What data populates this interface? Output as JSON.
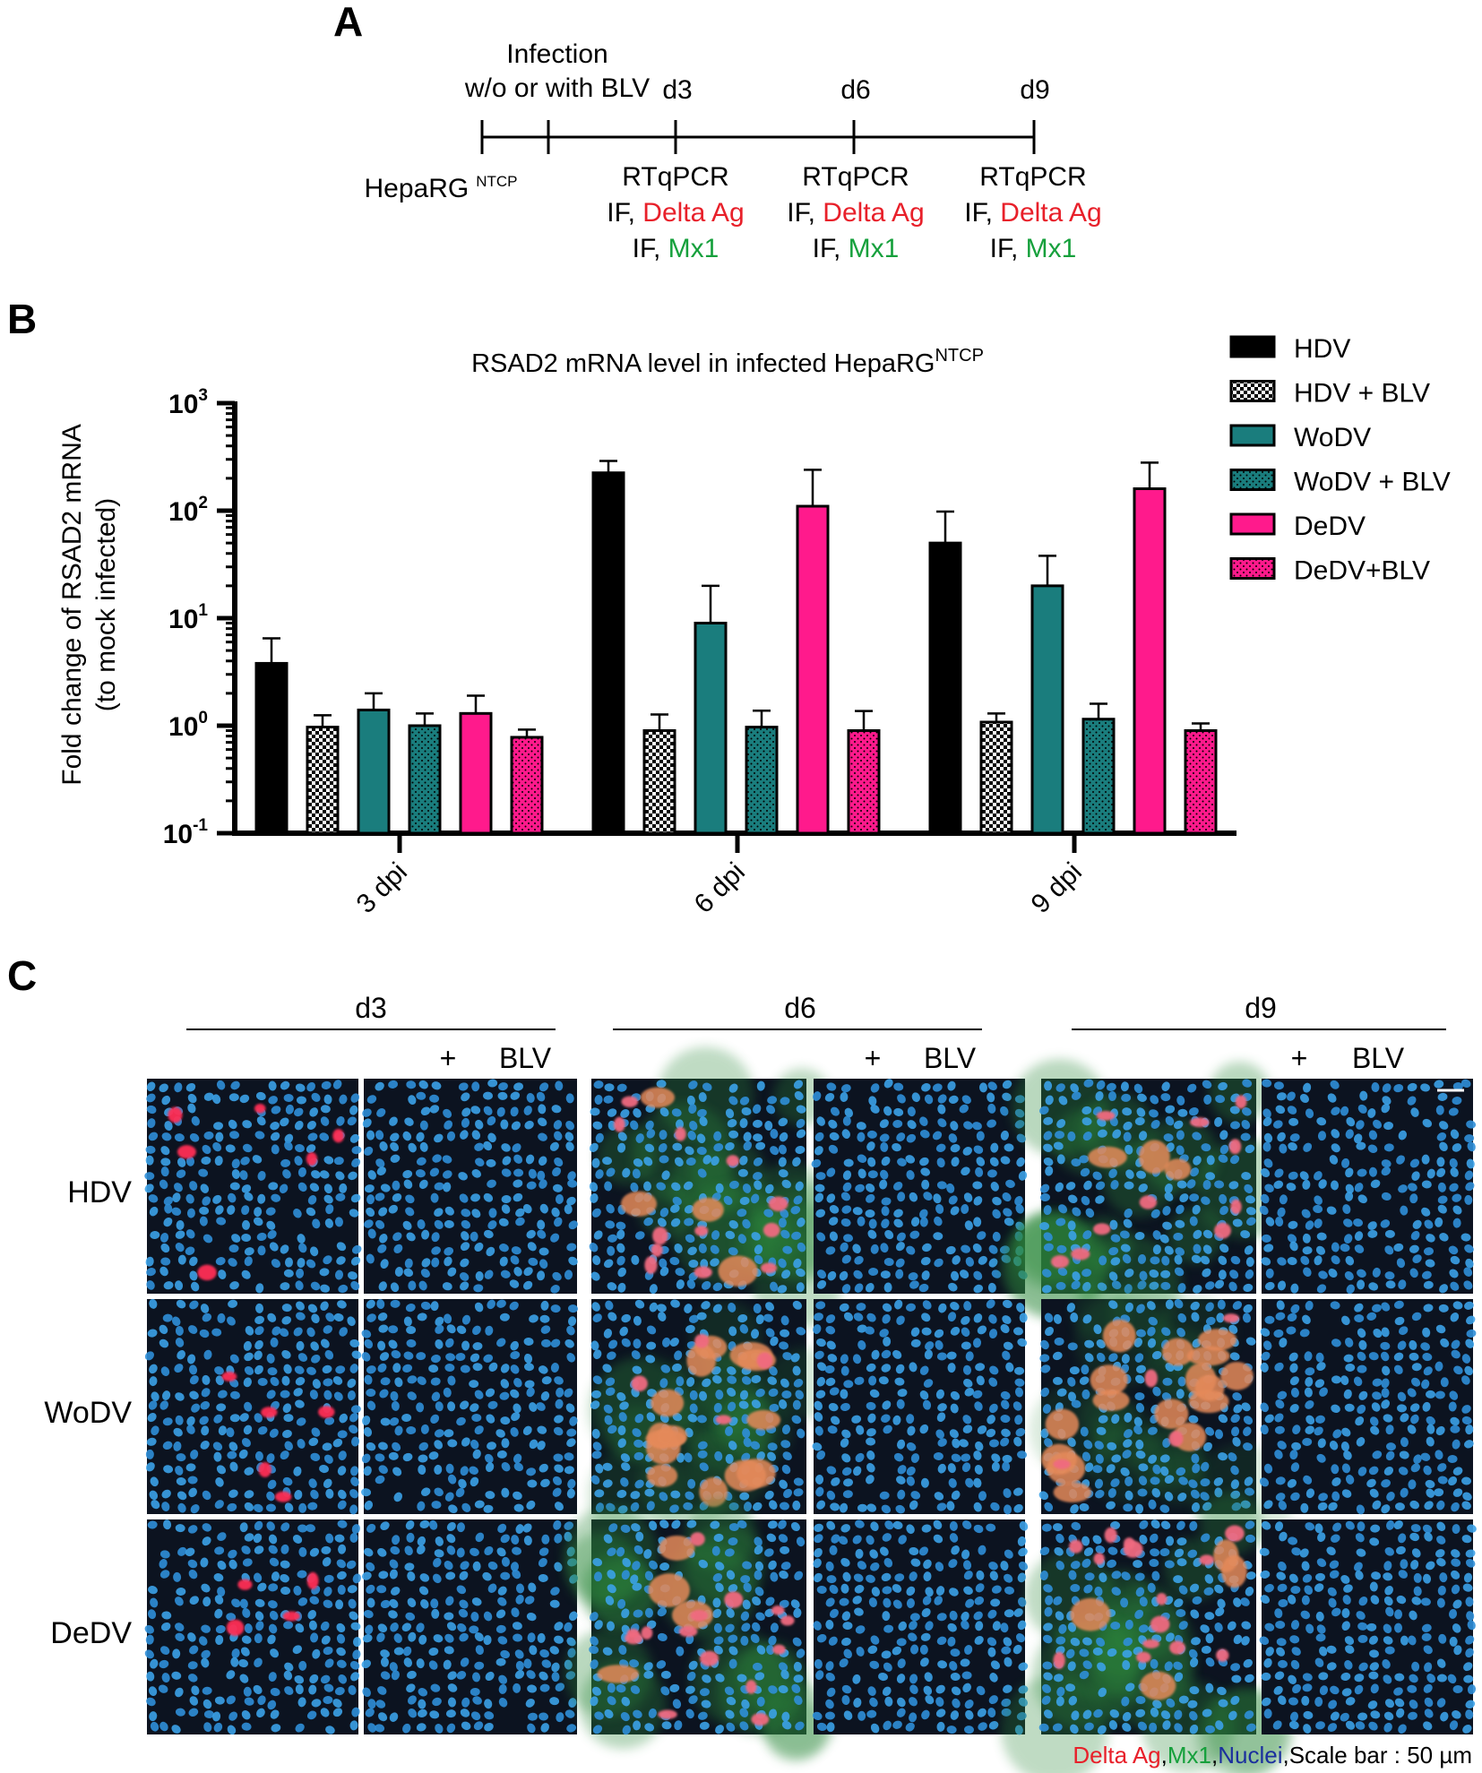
{
  "panel_a": {
    "label": "A",
    "infection_line1": "Infection",
    "infection_line2": "w/o or with BLV",
    "start_label": "HepaRG",
    "start_label_sup": "NTCP",
    "timepoints": [
      {
        "day": "d3",
        "assays": [
          "RTqPCR",
          "IF, ",
          "Delta Ag",
          "IF, ",
          "Mx1"
        ]
      },
      {
        "day": "d6",
        "assays": [
          "RTqPCR",
          "IF, ",
          "Delta Ag",
          "IF, ",
          "Mx1"
        ]
      },
      {
        "day": "d9",
        "assays": [
          "RTqPCR",
          "IF, ",
          "Delta Ag",
          "IF, ",
          "Mx1"
        ]
      }
    ]
  },
  "panel_b": {
    "label": "B"
  },
  "chart_data": {
    "type": "bar",
    "title": "RSAD2 mRNA level in infected HepaRG",
    "title_sup": "NTCP",
    "ylabel_line1": "Fold change of RSAD2 mRNA",
    "ylabel_line2": "(to mock infected)",
    "yscale": "log",
    "ylim": [
      0.1,
      1000
    ],
    "yticks": [
      {
        "base": "10",
        "exp": "-1"
      },
      {
        "base": "10",
        "exp": "0"
      },
      {
        "base": "10",
        "exp": "1"
      },
      {
        "base": "10",
        "exp": "2"
      },
      {
        "base": "10",
        "exp": "3"
      }
    ],
    "categories": [
      "3 dpi",
      "6 dpi",
      "9 dpi"
    ],
    "legend_position": "top-right",
    "series": [
      {
        "name": "HDV",
        "color": "#000000",
        "pattern": "solid",
        "values": [
          3.8,
          225,
          50
        ],
        "errors": [
          6.5,
          290,
          98
        ]
      },
      {
        "name": "HDV + BLV",
        "color": "#000000",
        "pattern": "checker",
        "values": [
          0.97,
          0.9,
          1.08
        ],
        "errors": [
          1.25,
          1.27,
          1.3
        ]
      },
      {
        "name": "WoDV",
        "color": "#1a7d7d",
        "pattern": "solid",
        "values": [
          1.4,
          9,
          20
        ],
        "errors": [
          2.0,
          20,
          38
        ]
      },
      {
        "name": "WoDV + BLV",
        "color": "#1a7d7d",
        "pattern": "dots",
        "values": [
          1.0,
          0.97,
          1.15
        ],
        "errors": [
          1.3,
          1.38,
          1.6
        ]
      },
      {
        "name": "DeDV",
        "color": "#ff1a8c",
        "pattern": "solid",
        "values": [
          1.3,
          110,
          160
        ],
        "errors": [
          1.9,
          240,
          280
        ]
      },
      {
        "name": "DeDV+BLV",
        "color": "#ff1a8c",
        "pattern": "dots",
        "values": [
          0.78,
          0.9,
          0.9
        ],
        "errors": [
          0.92,
          1.37,
          1.05
        ]
      }
    ]
  },
  "panel_c": {
    "label": "C",
    "days": [
      "d3",
      "d6",
      "d9"
    ],
    "plus": "+",
    "blv": "BLV",
    "rows": [
      "HDV",
      "WoDV",
      "DeDV"
    ],
    "caption": {
      "delta": "Delta Ag",
      "comma1": ",",
      "mx1": "Mx1",
      "comma2": ",",
      "nuclei": "Nuclei",
      "comma3": ",",
      "scale": "Scale bar : 50 µm"
    },
    "colors": {
      "delta": "#e8202a",
      "mx1": "#16a03c",
      "nuclei": "#1b2f9e"
    }
  }
}
